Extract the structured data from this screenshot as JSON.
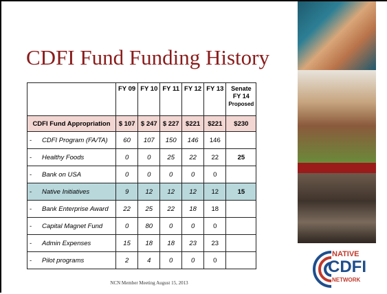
{
  "title": "CDFI Fund Funding History",
  "table": {
    "header": [
      "FY 09",
      "FY 10",
      "FY 11",
      "FY 12",
      "FY 13"
    ],
    "senate_header": [
      "Senate",
      "FY 14",
      "Proposed"
    ],
    "rows": [
      {
        "label": "CDFI Fund Appropriation",
        "cells": [
          "$ 107",
          "$ 247",
          "$ 227",
          "$221",
          "$221"
        ],
        "senate": "$230"
      },
      {
        "dash": "-",
        "label": "CDFI Program (FA/TA)",
        "cells": [
          "60",
          "107",
          "150",
          "146",
          "146"
        ],
        "senate": null
      },
      {
        "dash": "-",
        "label": "Healthy Foods",
        "cells": [
          "0",
          "0",
          "25",
          "22",
          "22"
        ],
        "senate": "25"
      },
      {
        "dash": "-",
        "label": "Bank on USA",
        "cells": [
          "0",
          "0",
          "0",
          "0",
          "0"
        ],
        "senate": null
      },
      {
        "dash": "-",
        "label": "Native Initiatives",
        "cells": [
          "9",
          "12",
          "12",
          "12",
          "12"
        ],
        "senate": "15"
      },
      {
        "dash": "-",
        "label": "Bank Enterprise Award",
        "cells": [
          "22",
          "25",
          "22",
          "18",
          "18"
        ],
        "senate": null
      },
      {
        "dash": "-",
        "label": "Capital Magnet Fund",
        "cells": [
          "0",
          "80",
          "0",
          "0",
          "0"
        ],
        "senate": null
      },
      {
        "dash": "-",
        "label": "Admin Expenses",
        "cells": [
          "15",
          "18",
          "18",
          "23",
          "23"
        ],
        "senate": null
      },
      {
        "dash": "-",
        "label": "Pilot programs",
        "cells": [
          "2",
          "4",
          "0",
          "0",
          "0"
        ],
        "senate": null
      }
    ]
  },
  "footer": "NCN Member Meeting August 15, 2013",
  "logo": [
    "NATIVE",
    "CDFI",
    "NETWORK"
  ]
}
